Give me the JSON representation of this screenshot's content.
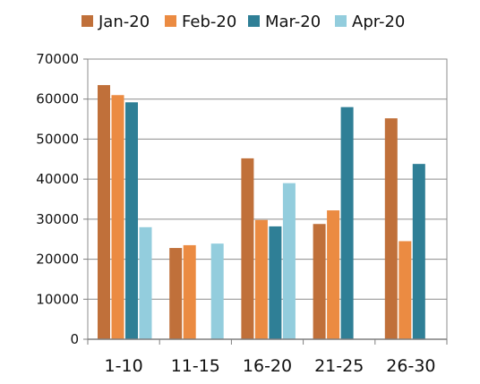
{
  "chart_data": {
    "type": "bar",
    "categories": [
      "1-10",
      "11-15",
      "16-20",
      "21-25",
      "26-30"
    ],
    "series": [
      {
        "name": "Jan-20",
        "color": "#C0703A",
        "values": [
          63500,
          22800,
          45200,
          28800,
          55200
        ]
      },
      {
        "name": "Feb-20",
        "color": "#EB8B42",
        "values": [
          61000,
          23500,
          29800,
          32200,
          24500
        ]
      },
      {
        "name": "Mar-20",
        "color": "#2F7F96",
        "values": [
          59200,
          null,
          28200,
          58000,
          43800
        ]
      },
      {
        "name": "Apr-20",
        "color": "#93CDDD",
        "values": [
          28000,
          23900,
          39000,
          null,
          null
        ]
      }
    ],
    "y_ticks": [
      "0",
      "10000",
      "20000",
      "30000",
      "40000",
      "50000",
      "60000",
      "70000"
    ],
    "ylim": [
      0,
      70000
    ],
    "grid": true,
    "legend_position": "top",
    "title": "",
    "xlabel": "",
    "ylabel": ""
  }
}
